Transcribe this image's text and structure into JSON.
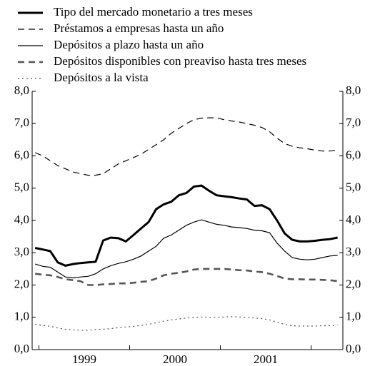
{
  "chart_data": {
    "type": "line",
    "x": [
      1998.958,
      1999.042,
      1999.125,
      1999.208,
      1999.292,
      1999.375,
      1999.458,
      1999.542,
      1999.625,
      1999.708,
      1999.792,
      1999.875,
      1999.958,
      2000.042,
      2000.125,
      2000.208,
      2000.292,
      2000.375,
      2000.458,
      2000.542,
      2000.625,
      2000.708,
      2000.792,
      2000.875,
      2000.958,
      2001.042,
      2001.125,
      2001.208,
      2001.292,
      2001.375,
      2001.458,
      2001.542,
      2001.625,
      2001.708,
      2001.792,
      2001.875,
      2001.958,
      2002.042,
      2002.125,
      2002.208,
      2002.292
    ],
    "series": [
      {
        "name": "Tipo del mercado monetario a tres meses",
        "color": "#000000",
        "linestyle": "solid",
        "linewidth": 3,
        "values": [
          3.15,
          3.1,
          3.05,
          2.7,
          2.6,
          2.65,
          2.68,
          2.7,
          2.72,
          3.38,
          3.47,
          3.45,
          3.35,
          3.55,
          3.75,
          3.95,
          4.35,
          4.5,
          4.58,
          4.78,
          4.85,
          5.05,
          5.08,
          4.92,
          4.78,
          4.75,
          4.72,
          4.68,
          4.65,
          4.45,
          4.47,
          4.35,
          4.0,
          3.6,
          3.4,
          3.35,
          3.35,
          3.37,
          3.4,
          3.42,
          3.47
        ]
      },
      {
        "name": "Préstamos a empresas hasta un año",
        "color": "#000000",
        "linestyle": "dashed",
        "linewidth": 1.2,
        "values": [
          6.1,
          6.0,
          5.85,
          5.7,
          5.6,
          5.5,
          5.45,
          5.4,
          5.4,
          5.45,
          5.6,
          5.75,
          5.85,
          5.95,
          6.05,
          6.2,
          6.35,
          6.5,
          6.7,
          6.85,
          7.0,
          7.12,
          7.17,
          7.18,
          7.18,
          7.12,
          7.08,
          7.05,
          7.0,
          6.95,
          6.88,
          6.75,
          6.55,
          6.38,
          6.3,
          6.25,
          6.22,
          6.18,
          6.15,
          6.15,
          6.18
        ]
      },
      {
        "name": "Depósitos a plazo hasta un año",
        "color": "#000000",
        "linestyle": "solid",
        "linewidth": 1.2,
        "values": [
          2.65,
          2.58,
          2.55,
          2.4,
          2.25,
          2.22,
          2.25,
          2.27,
          2.35,
          2.5,
          2.6,
          2.67,
          2.72,
          2.8,
          2.9,
          3.05,
          3.2,
          3.45,
          3.55,
          3.7,
          3.85,
          3.95,
          4.02,
          3.95,
          3.88,
          3.85,
          3.8,
          3.78,
          3.75,
          3.7,
          3.68,
          3.62,
          3.3,
          3.05,
          2.85,
          2.8,
          2.78,
          2.8,
          2.85,
          2.9,
          2.92
        ]
      },
      {
        "name": "Depósitos disponibles con preaviso hasta tres meses",
        "color": "#555555",
        "linestyle": "dashed",
        "linewidth": 2.6,
        "values": [
          2.35,
          2.32,
          2.3,
          2.25,
          2.18,
          2.15,
          2.12,
          2.0,
          2.0,
          2.02,
          2.03,
          2.05,
          2.05,
          2.07,
          2.1,
          2.12,
          2.2,
          2.3,
          2.35,
          2.38,
          2.42,
          2.48,
          2.5,
          2.5,
          2.5,
          2.5,
          2.48,
          2.46,
          2.45,
          2.42,
          2.4,
          2.35,
          2.28,
          2.2,
          2.18,
          2.18,
          2.17,
          2.17,
          2.16,
          2.15,
          2.12
        ]
      },
      {
        "name": "Depósitos a la vista",
        "color": "#555555",
        "linestyle": "dotted",
        "linewidth": 1.2,
        "values": [
          0.78,
          0.75,
          0.72,
          0.67,
          0.63,
          0.61,
          0.6,
          0.6,
          0.62,
          0.63,
          0.65,
          0.68,
          0.7,
          0.72,
          0.75,
          0.78,
          0.83,
          0.88,
          0.92,
          0.95,
          0.98,
          1.0,
          1.01,
          1.0,
          1.0,
          1.01,
          1.02,
          1.01,
          1.0,
          0.98,
          0.96,
          0.92,
          0.85,
          0.78,
          0.74,
          0.73,
          0.73,
          0.73,
          0.74,
          0.74,
          0.76
        ]
      }
    ],
    "xlim": [
      1998.925,
      2002.35
    ],
    "xticks": [
      {
        "value": 1999.5,
        "label": "1999"
      },
      {
        "value": 2000.5,
        "label": "2000"
      },
      {
        "value": 2001.5,
        "label": "2001"
      }
    ],
    "xminor": [
      1999,
      2000,
      2001,
      2002
    ],
    "ylim": [
      0,
      8
    ],
    "yticks": [
      {
        "value": 0,
        "label": "0,0"
      },
      {
        "value": 1,
        "label": "1,0"
      },
      {
        "value": 2,
        "label": "2,0"
      },
      {
        "value": 3,
        "label": "3,0"
      },
      {
        "value": 4,
        "label": "4,0"
      },
      {
        "value": 5,
        "label": "5,0"
      },
      {
        "value": 6,
        "label": "6,0"
      },
      {
        "value": 7,
        "label": "7,0"
      },
      {
        "value": 8,
        "label": "8,0"
      }
    ],
    "legend": "top-left"
  }
}
